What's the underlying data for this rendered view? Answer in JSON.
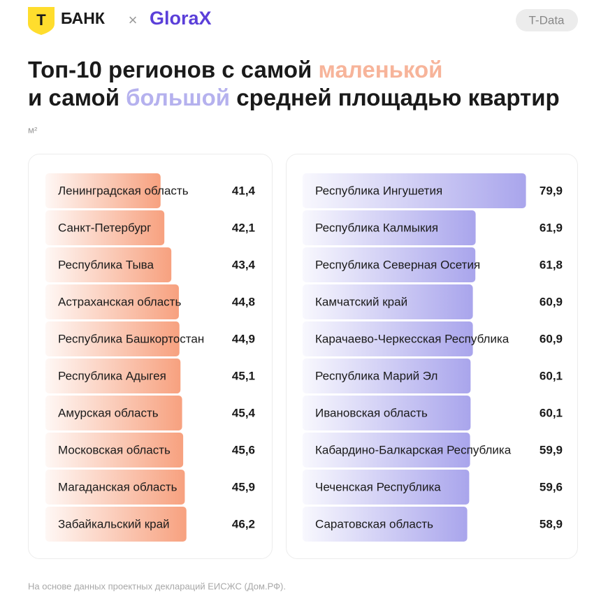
{
  "header": {
    "logo_letter": "Т",
    "brand": "БАНК",
    "separator": "×",
    "partner": "GloraX",
    "badge": "T-Data"
  },
  "title": [
    [
      {
        "text": "Топ-10 регионов с самой "
      },
      {
        "text": "маленькой",
        "color": "#f7b49a"
      }
    ],
    [
      {
        "text": "и самой "
      },
      {
        "text": "большой",
        "color": "#b5b1ee"
      },
      {
        "text": " средней площадью квартир"
      }
    ]
  ],
  "unit": "м²",
  "footnote": "На основе данных проектных деклараций ЕИСЖС (Дом.РФ).",
  "chart_data": [
    {
      "type": "bar",
      "orientation": "horizontal",
      "color": "#f7a17f",
      "xlim": [
        20,
        50
      ],
      "categories": [
        "Ленинградская область",
        "Санкт-Петербург",
        "Республика Тыва",
        "Астраханская область",
        "Республика Башкортостан",
        "Республика Адыгея",
        "Амурская область",
        "Московская область",
        "Магаданская область",
        "Забайкальский край"
      ],
      "values": [
        41.4,
        42.1,
        43.4,
        44.8,
        44.9,
        45.1,
        45.4,
        45.6,
        45.9,
        46.2
      ],
      "value_labels": [
        "41,4",
        "42,1",
        "43,4",
        "44,8",
        "44,9",
        "45,1",
        "45,4",
        "45,6",
        "45,9",
        "46,2"
      ]
    },
    {
      "type": "bar",
      "orientation": "horizontal",
      "color": "#a9a5ec",
      "xlim": [
        0,
        90
      ],
      "categories": [
        "Республика Ингушетия",
        "Республика Калмыкия",
        "Республика Северная Осетия",
        "Камчатский край",
        "Карачаево-Черкесская Республика",
        "Республика Марий Эл",
        "Ивановская область",
        "Кабардино-Балкарская Республика",
        "Чеченская Республика",
        "Саратовская область"
      ],
      "values": [
        79.9,
        61.9,
        61.8,
        60.9,
        60.9,
        60.1,
        60.1,
        59.9,
        59.6,
        58.9
      ],
      "value_labels": [
        "79,9",
        "61,9",
        "61,8",
        "60,9",
        "60,9",
        "60,1",
        "60,1",
        "59,9",
        "59,6",
        "58,9"
      ]
    }
  ]
}
